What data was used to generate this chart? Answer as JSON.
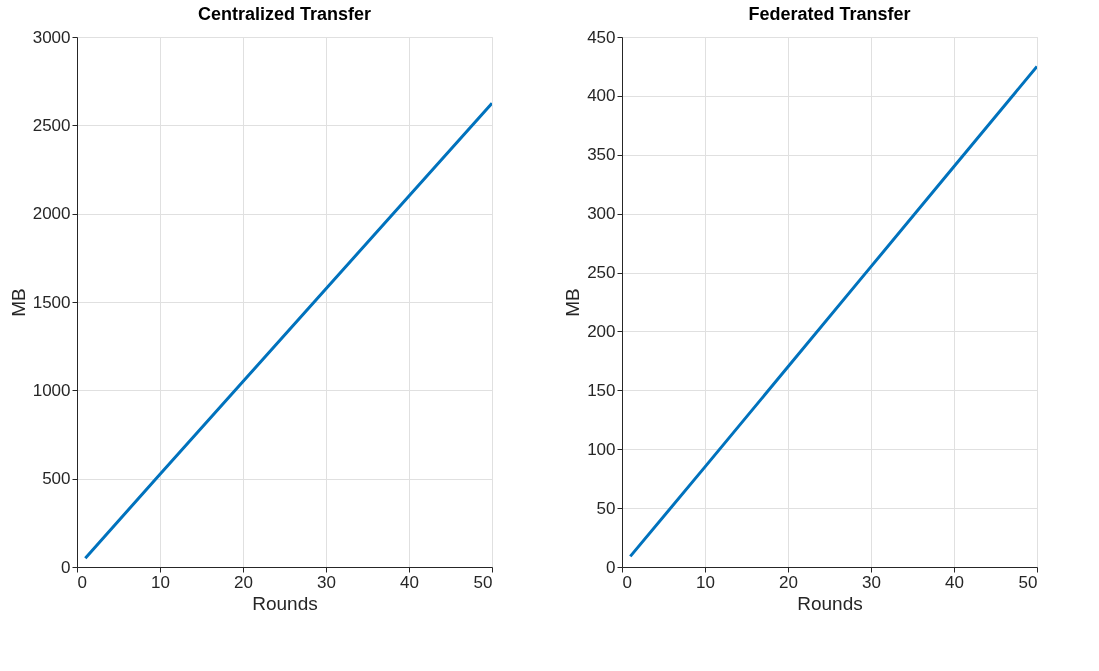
{
  "chart_data": [
    {
      "type": "line",
      "title": "Centralized Transfer",
      "xlabel": "Rounds",
      "ylabel": "MB",
      "x": [
        1,
        10,
        20,
        30,
        40,
        50
      ],
      "series": [
        {
          "color": "#0072bd",
          "values": [
            50,
            525,
            1050,
            1575,
            2100,
            2625
          ]
        }
      ],
      "xlim": [
        0,
        50
      ],
      "xticks": [
        0,
        10,
        20,
        30,
        40,
        50
      ],
      "ylim": [
        0,
        3000
      ],
      "yticks": [
        0,
        500,
        1000,
        1500,
        2000,
        2500,
        3000
      ],
      "grid": true,
      "legend": false,
      "marker": "none",
      "line_style": "solid"
    },
    {
      "type": "line",
      "title": "Federated Transfer",
      "xlabel": "Rounds",
      "ylabel": "MB",
      "x": [
        1,
        10,
        20,
        30,
        40,
        50
      ],
      "series": [
        {
          "color": "#0072bd",
          "values": [
            9,
            85,
            170,
            255,
            340,
            425
          ]
        }
      ],
      "xlim": [
        0,
        50
      ],
      "xticks": [
        0,
        10,
        20,
        30,
        40,
        50
      ],
      "ylim": [
        0,
        450
      ],
      "yticks": [
        0,
        50,
        100,
        150,
        200,
        250,
        300,
        350,
        400,
        450
      ],
      "grid": true,
      "legend": false,
      "marker": "none",
      "line_style": "solid"
    }
  ]
}
